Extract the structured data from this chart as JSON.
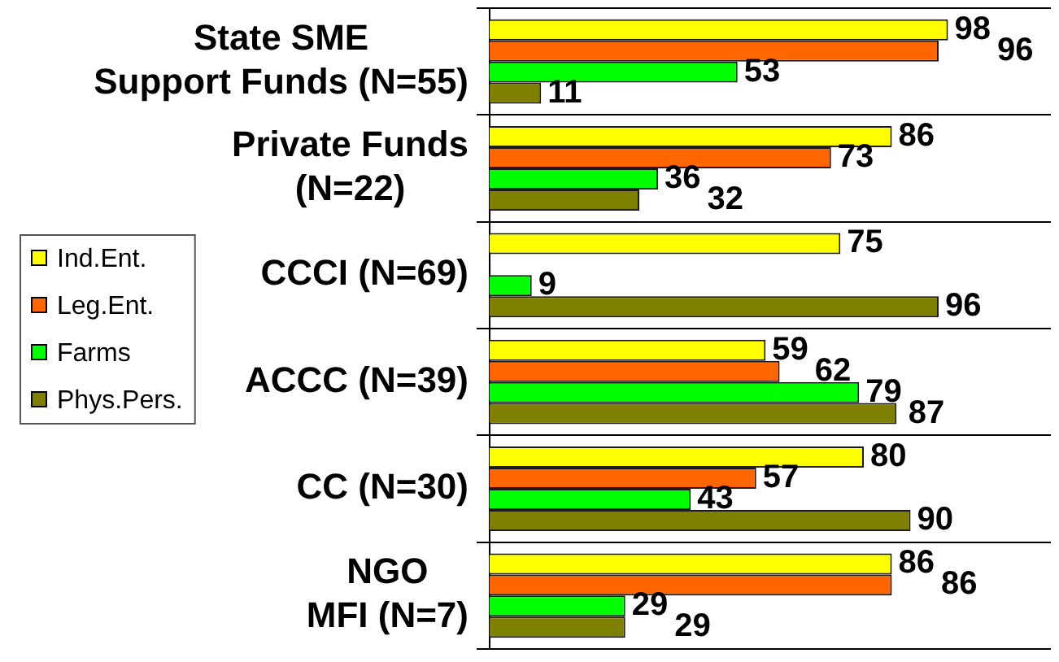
{
  "chart_data": {
    "type": "bar",
    "orientation": "horizontal",
    "categories": [
      "State SME\nSupport Funds (N=55)",
      "Private Funds\n(N=22)",
      "CCCI (N=69)",
      "ACCC (N=39)",
      "CC (N=30)",
      "NGO\nMFI (N=7)"
    ],
    "series": [
      {
        "name": "Ind.Ent.",
        "color": "#ffff00",
        "values": [
          98,
          86,
          75,
          59,
          80,
          86
        ]
      },
      {
        "name": "Leg.Ent.",
        "color": "#ff6600",
        "values": [
          96,
          73,
          null,
          62,
          57,
          86
        ]
      },
      {
        "name": "Farms",
        "color": "#00ff00",
        "values": [
          53,
          36,
          9,
          79,
          43,
          29
        ]
      },
      {
        "name": "Phys.Pers.",
        "color": "#808000",
        "values": [
          11,
          32,
          96,
          87,
          90,
          29
        ]
      }
    ],
    "xlim": [
      0,
      120
    ],
    "data_labels": true,
    "grid": "y",
    "legend": "left",
    "tick_labels": "y"
  }
}
